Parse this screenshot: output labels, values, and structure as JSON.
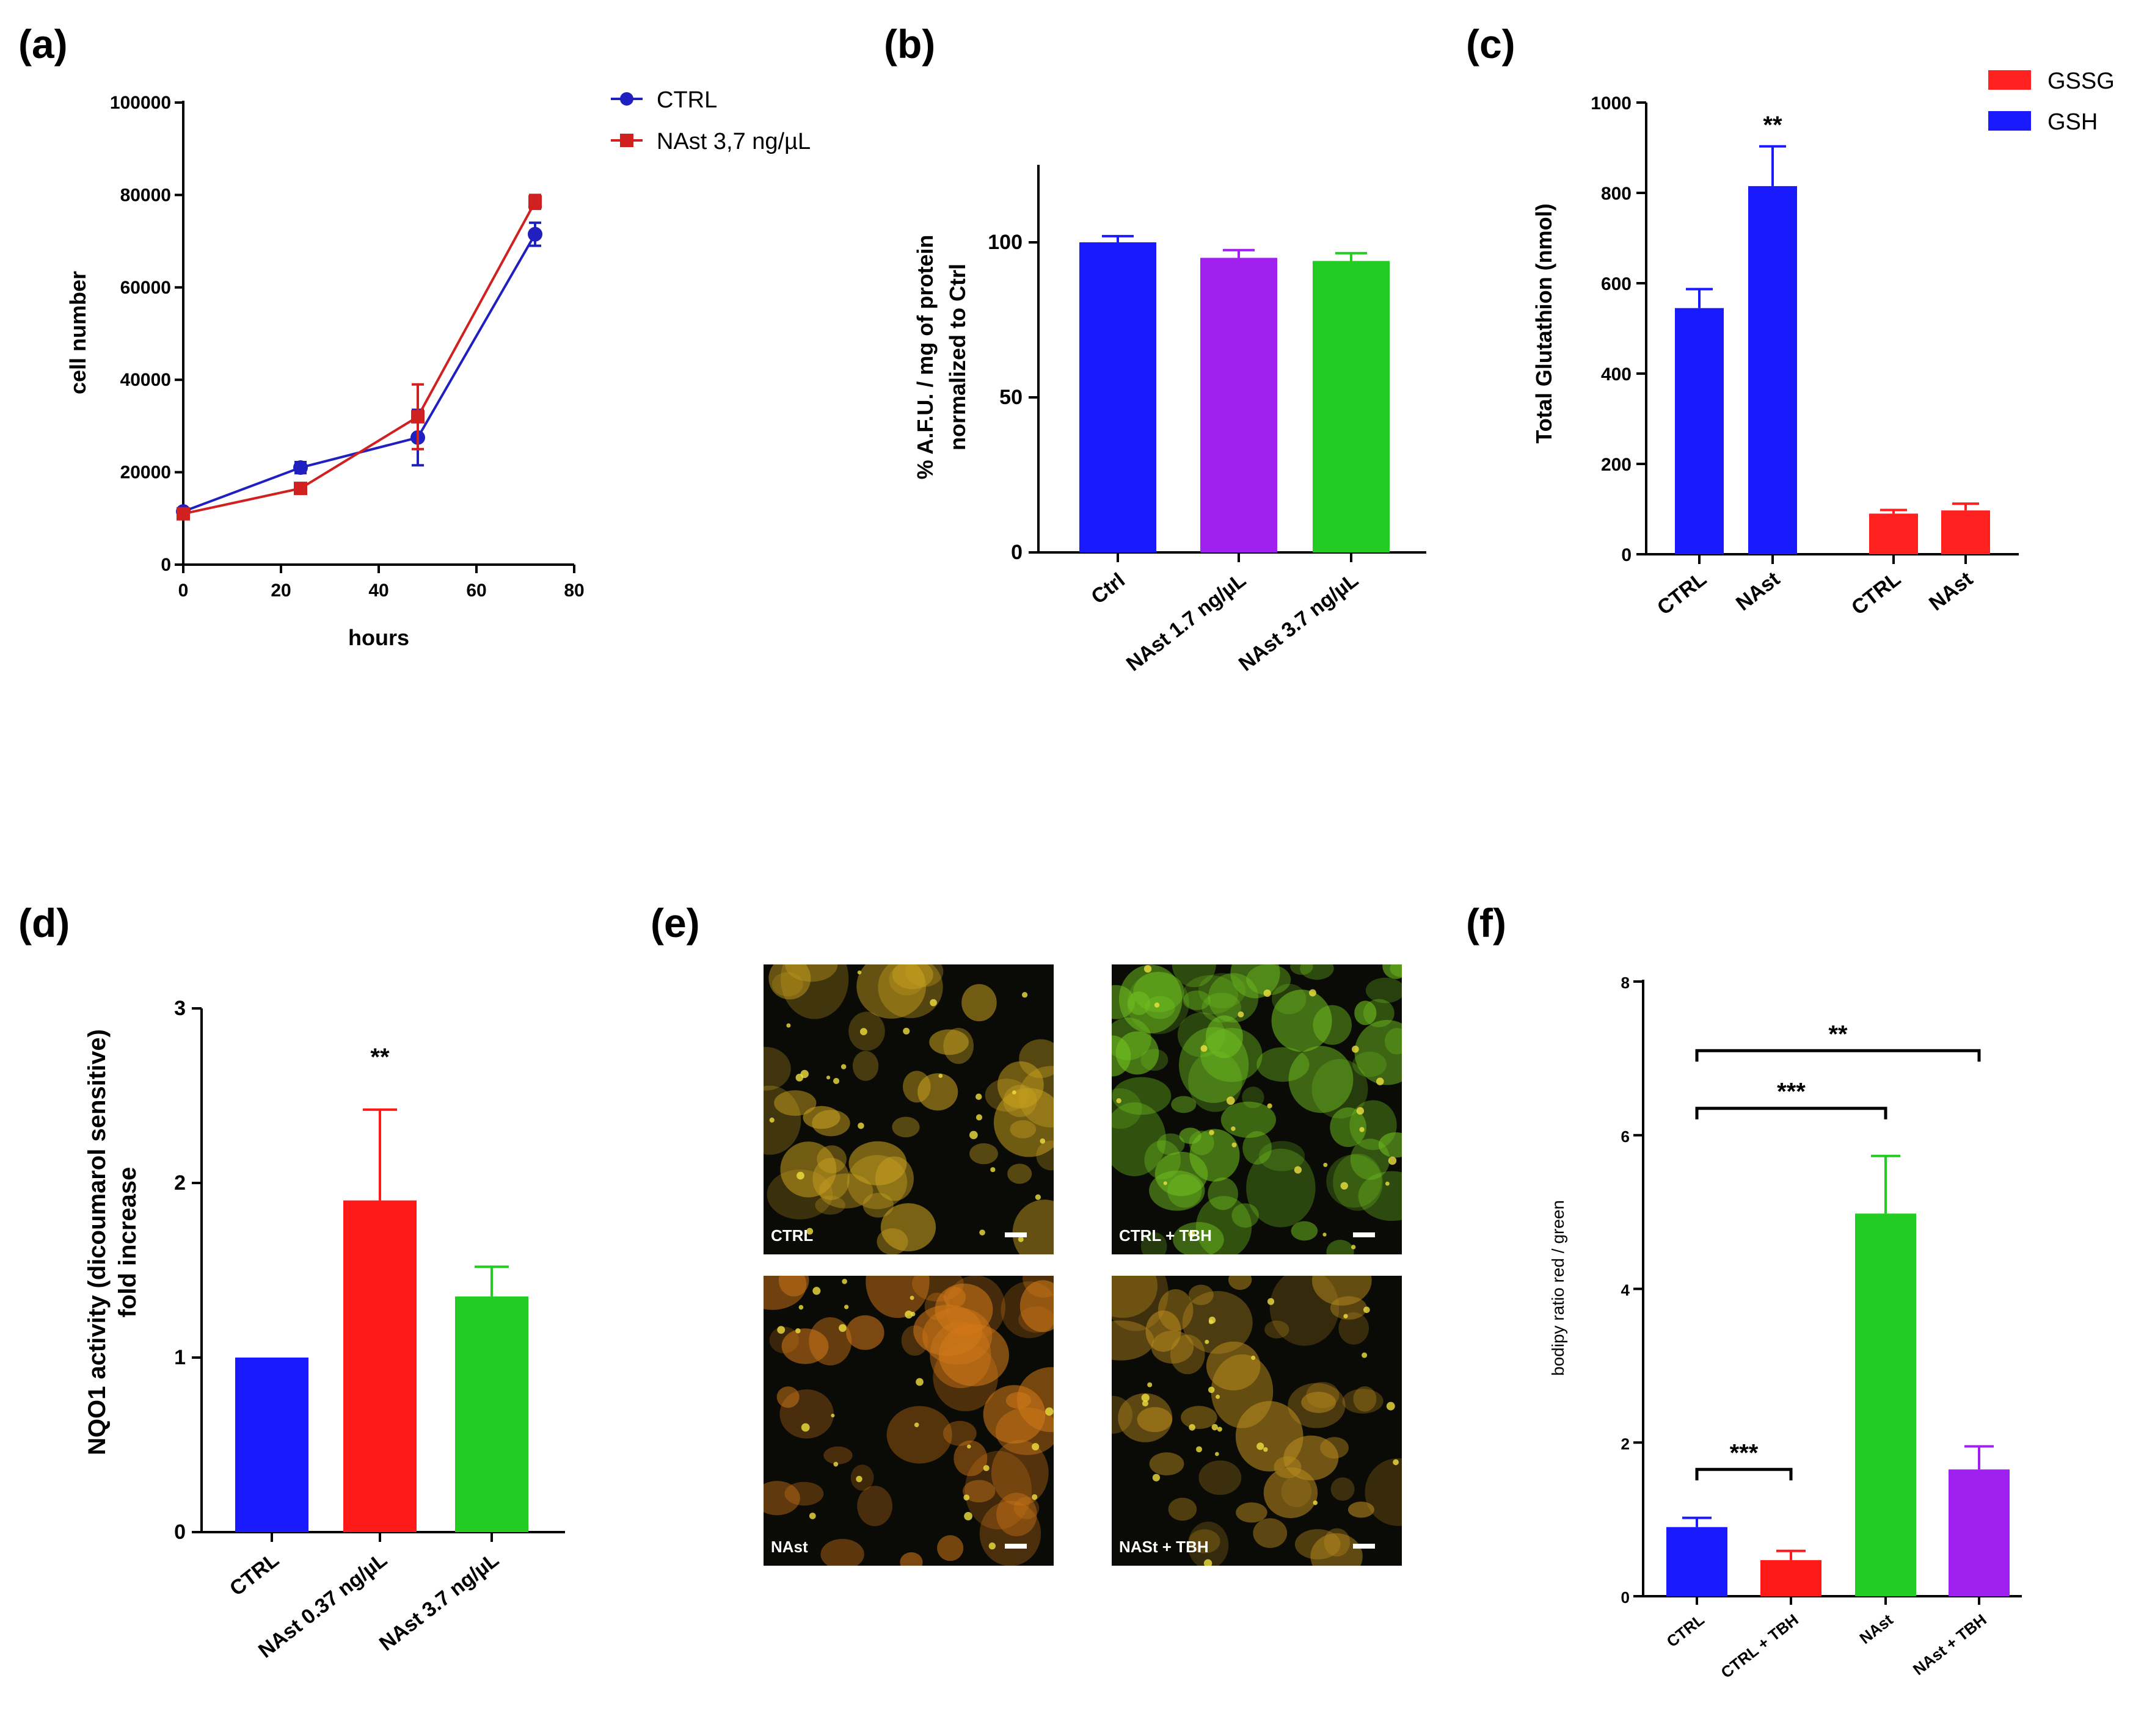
{
  "panel_labels": [
    "(a)",
    "(b)",
    "(c)",
    "(d)",
    "(e)",
    "(f)"
  ],
  "chart_data": [
    {
      "panel": "(a)",
      "type": "line",
      "xlabel": "hours",
      "ylabel": "cell number",
      "xlim": [
        0,
        80
      ],
      "ylim": [
        0,
        100000
      ],
      "xticks": [
        0,
        20,
        40,
        60,
        80
      ],
      "xtick_labels": [
        "0",
        "20",
        "40",
        "60",
        "80"
      ],
      "yticks": [
        0,
        20000,
        40000,
        60000,
        80000,
        100000
      ],
      "ytick_labels": [
        "0",
        "20000",
        "40000",
        "60000",
        "80000",
        "100000"
      ],
      "series": [
        {
          "name": "CTRL",
          "color": "#2020c0",
          "marker": "circle",
          "x": [
            0,
            24,
            48,
            72
          ],
          "y": [
            11500,
            21000,
            27500,
            71500
          ],
          "err": [
            500,
            1200,
            6000,
            2500
          ]
        },
        {
          "name": "NAst 3,7 ng/µL",
          "color": "#d02020",
          "marker": "square",
          "x": [
            0,
            24,
            48,
            72
          ],
          "y": [
            11000,
            16500,
            32000,
            78500
          ],
          "err": [
            400,
            800,
            7000,
            1500
          ]
        }
      ]
    },
    {
      "panel": "(b)",
      "type": "bar",
      "ylabel_lines": [
        "% A.F.U. / mg of protein",
        "normalized to Ctrl"
      ],
      "ylim": [
        0,
        125
      ],
      "yticks": [
        0,
        50,
        100
      ],
      "ytick_labels": [
        "0",
        "50",
        "100"
      ],
      "categories": [
        "Ctrl",
        "NAst 1.7 ng/µL",
        "NAst 3.7 ng/µL"
      ],
      "values": [
        100,
        95,
        94
      ],
      "errors": [
        2,
        2.5,
        2.5
      ],
      "colors": [
        "#1a1aff",
        "#a020f0",
        "#22cc22"
      ]
    },
    {
      "panel": "(c)",
      "type": "bar",
      "ylabel": "Total Glutathion (nmol)",
      "ylim": [
        0,
        1000
      ],
      "yticks": [
        0,
        200,
        400,
        600,
        800,
        1000
      ],
      "ytick_labels": [
        "0",
        "200",
        "400",
        "600",
        "800",
        "1000"
      ],
      "categories": [
        "CTRL",
        "NAst",
        "CTRL",
        "NAst"
      ],
      "values": [
        545,
        815,
        90,
        97
      ],
      "errors": [
        42,
        88,
        8,
        15
      ],
      "colors": [
        "#1a1aff",
        "#1a1aff",
        "#ff2020",
        "#ff2020"
      ],
      "legend": [
        {
          "name": "GSSG",
          "color": "#ff2020"
        },
        {
          "name": "GSH",
          "color": "#1a1aff"
        }
      ],
      "annotations": [
        {
          "text": "**",
          "bar": 1
        }
      ]
    },
    {
      "panel": "(d)",
      "type": "bar",
      "ylabel_lines": [
        "NQO1 activity (dicoumarol sensitive)",
        "fold increase"
      ],
      "ylim": [
        0,
        3
      ],
      "yticks": [
        0,
        1,
        2,
        3
      ],
      "ytick_labels": [
        "0",
        "1",
        "2",
        "3"
      ],
      "categories": [
        "CTRL",
        "NAst 0.37 ng/µL",
        "NAst 3.7 ng/µL"
      ],
      "values": [
        1.0,
        1.9,
        1.35
      ],
      "errors": [
        0,
        0.52,
        0.17
      ],
      "colors": [
        "#1a1aff",
        "#ff1a1a",
        "#22cc22"
      ],
      "annotations": [
        {
          "text": "**",
          "bar": 1
        }
      ]
    },
    {
      "panel": "(f)",
      "type": "bar",
      "ylabel": "bodipy ratio red / green",
      "ylim": [
        0,
        8
      ],
      "yticks": [
        0,
        2,
        4,
        6,
        8
      ],
      "ytick_labels": [
        "0",
        "2",
        "4",
        "6",
        "8"
      ],
      "categories": [
        "CTRL",
        "CTRL + TBH",
        "NAst",
        "NAst + TBH"
      ],
      "values": [
        0.9,
        0.47,
        4.98,
        1.65
      ],
      "errors": [
        0.12,
        0.12,
        0.75,
        0.3
      ],
      "colors": [
        "#1a1aff",
        "#ff1a1a",
        "#22cc22",
        "#a020f0"
      ],
      "significance": [
        {
          "from": 0,
          "to": 3,
          "text": "**",
          "level": 7.1
        },
        {
          "from": 0,
          "to": 2,
          "text": "***",
          "level": 6.35
        },
        {
          "from": 0,
          "to": 1,
          "text": "***",
          "level": 1.65
        }
      ]
    }
  ],
  "images": {
    "panel": "(e)",
    "tiles": [
      {
        "label": "CTRL",
        "tint": "#c8a020"
      },
      {
        "label": "CTRL + TBH",
        "tint": "#70c020"
      },
      {
        "label": "NAst",
        "tint": "#d07818"
      },
      {
        "label": "NASt + TBH",
        "tint": "#b88a1e"
      }
    ]
  }
}
